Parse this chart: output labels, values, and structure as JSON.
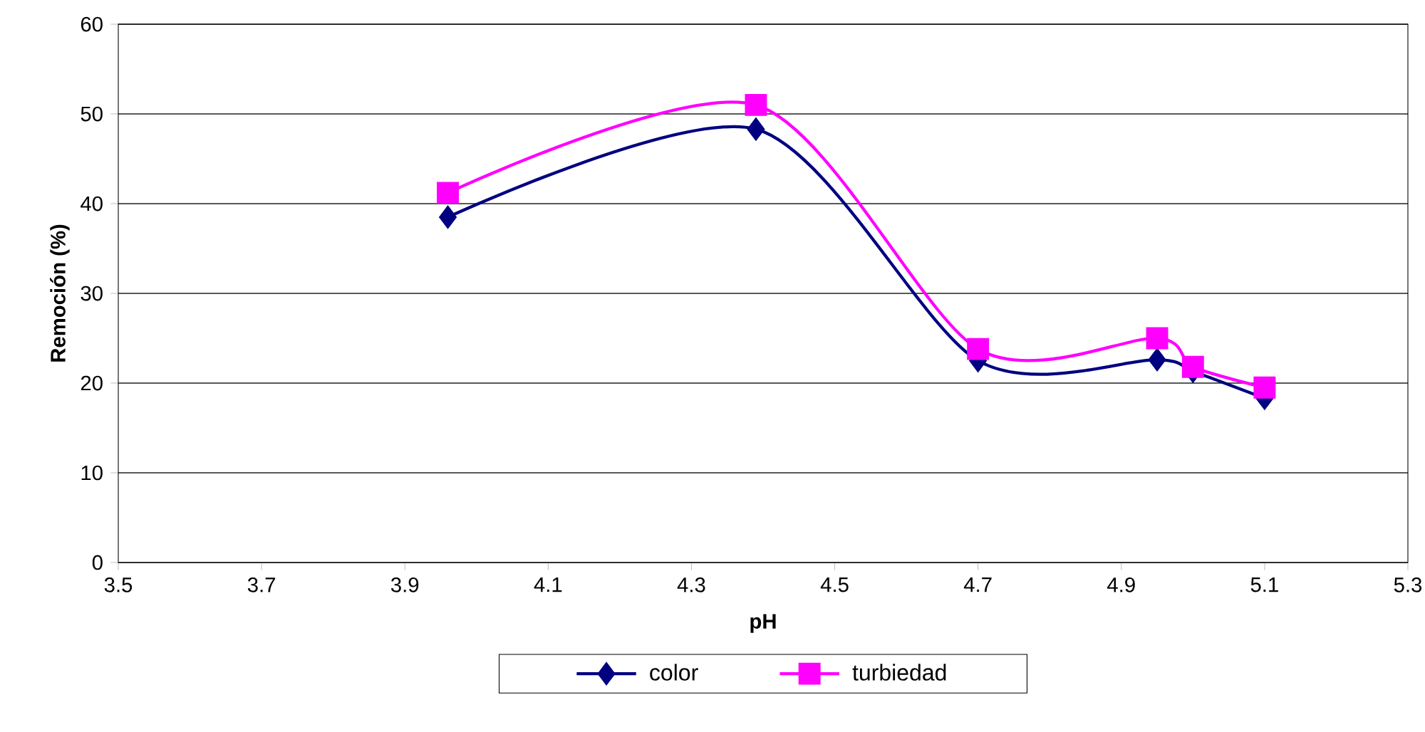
{
  "chart_data": {
    "type": "line",
    "xlabel": "pH",
    "ylabel": "Remoción (%)",
    "x": [
      3.96,
      4.39,
      4.7,
      4.95,
      5.0,
      5.1
    ],
    "series": [
      {
        "name": "color",
        "color": "#000080",
        "marker": "diamond",
        "values": [
          38.5,
          48.3,
          22.5,
          22.6,
          21.3,
          18.3
        ]
      },
      {
        "name": "turbiedad",
        "color": "#ff00ff",
        "marker": "square",
        "values": [
          41.2,
          51.0,
          23.8,
          25.0,
          21.8,
          19.5
        ]
      }
    ],
    "xlim": [
      3.5,
      5.3
    ],
    "xticks": [
      3.5,
      3.7,
      3.9,
      4.1,
      4.3,
      4.5,
      4.7,
      4.9,
      5.1,
      5.3
    ],
    "ylim": [
      0,
      60
    ],
    "yticks": [
      0,
      10,
      20,
      30,
      40,
      50,
      60
    ],
    "grid": "y",
    "legend": "bottom",
    "line_style": "solid"
  }
}
